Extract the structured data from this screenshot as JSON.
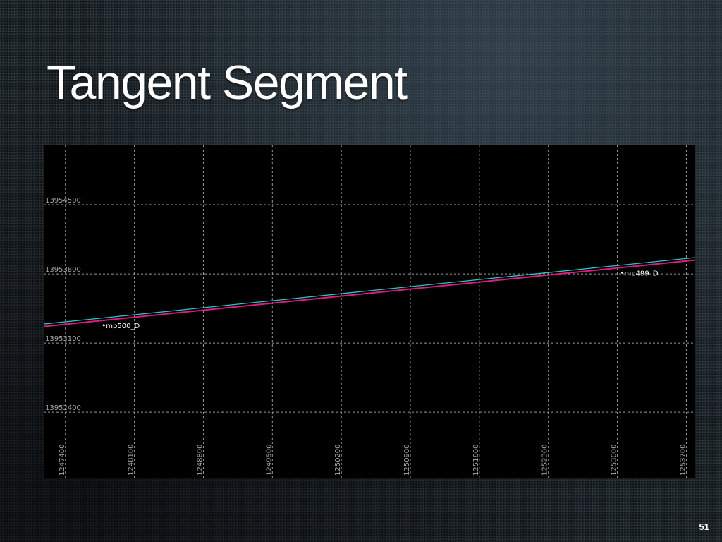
{
  "slide": {
    "title": "Tangent Segment",
    "page_number": "51"
  },
  "chart_data": {
    "type": "line",
    "title": "",
    "xlabel": "",
    "ylabel": "",
    "xlim": [
      1247180,
      1253790
    ],
    "ylim": [
      13951730,
      13955100
    ],
    "grid": true,
    "x_ticks": [
      1247400,
      1248100,
      1248800,
      1249500,
      1250200,
      1250900,
      1251600,
      1252300,
      1253000,
      1253700
    ],
    "y_ticks": [
      13952400,
      13953100,
      13953800,
      13954500
    ],
    "x_tick_labels": [
      "1247400",
      "1248100",
      "1248800",
      "1249500",
      "1250200",
      "1250900",
      "1251600",
      "1252300",
      "1253000",
      "1253700"
    ],
    "y_tick_labels": [
      "13952400",
      "13953100",
      "13953800",
      "13954500"
    ],
    "series": [
      {
        "color": "#29c7c7",
        "x": [
          1247180,
          1253790
        ],
        "y": [
          13953293,
          13953965
        ]
      },
      {
        "color": "#e0197f",
        "x": [
          1247180,
          1253790
        ],
        "y": [
          13953268,
          13953940
        ]
      }
    ],
    "annotations": [
      {
        "text": "mp500_D",
        "x": 1247790,
        "y": 13953280
      },
      {
        "text": "mp499_D",
        "x": 1253050,
        "y": 13953812
      }
    ],
    "colors": {
      "background": "#000000",
      "grid": "#9a9a9a",
      "tick_label": "#a8a8a8",
      "annotation": "#ffffff"
    }
  }
}
